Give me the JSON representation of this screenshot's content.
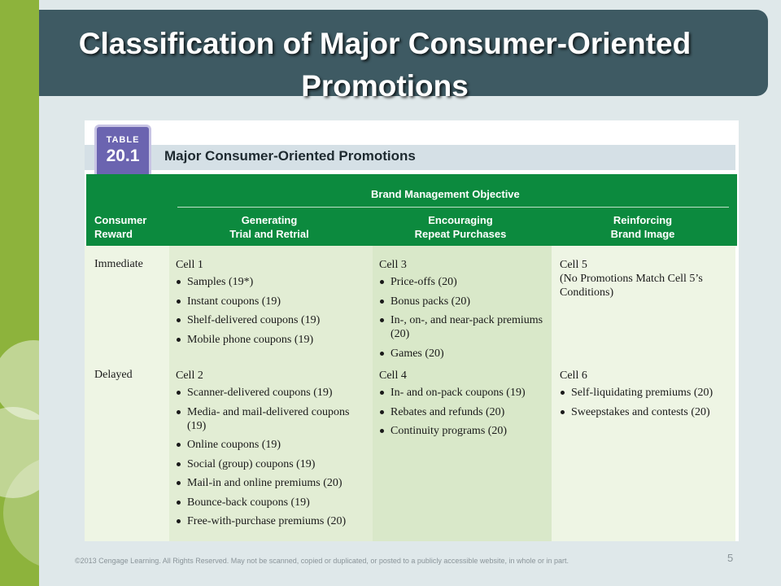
{
  "slide": {
    "title": "Classification of Major Consumer-Oriented Promotions",
    "footer": "©2013 Cengage Learning. All Rights Reserved. May not be scanned, copied or duplicated, or posted to a publicly accessible website, in whole or in part.",
    "page_number": "5"
  },
  "table": {
    "badge_word": "TABLE",
    "badge_number": "20.1",
    "caption": "Major Consumer-Oriented Promotions",
    "group_header": "Brand Management Objective",
    "row_header": "Consumer\nReward",
    "columns": [
      "Generating\nTrial and Retrial",
      "Encouraging\nRepeat Purchases",
      "Reinforcing\nBrand Image"
    ],
    "rows": [
      {
        "label": "Immediate",
        "cells": [
          {
            "title": "Cell 1",
            "items": [
              "Samples (19*)",
              "Instant coupons (19)",
              "Shelf-delivered coupons (19)",
              "Mobile phone coupons (19)"
            ]
          },
          {
            "title": "Cell 3",
            "items": [
              "Price-offs (20)",
              "Bonus packs (20)",
              "In-, on-, and near-pack premiums (20)",
              "Games (20)"
            ]
          },
          {
            "title": "Cell 5",
            "note": "(No Promotions Match Cell 5’s Conditions)",
            "items": []
          }
        ]
      },
      {
        "label": "Delayed",
        "cells": [
          {
            "title": "Cell 2",
            "items": [
              "Scanner-delivered coupons (19)",
              "Media- and mail-delivered coupons (19)",
              "Online coupons (19)",
              "Social (group) coupons (19)",
              "Mail-in and online premiums (20)",
              "Bounce-back coupons (19)",
              "Free-with-purchase premiums (20)"
            ]
          },
          {
            "title": "Cell 4",
            "items": [
              "In- and on-pack coupons (19)",
              "Rebates and refunds (20)",
              "Continuity programs (20)"
            ]
          },
          {
            "title": "Cell 6",
            "items": [
              "Self-liquidating premiums (20)",
              "Sweepstakes and contests (20)"
            ]
          }
        ]
      }
    ]
  },
  "colors": {
    "title_bar": "#3e5a63",
    "left_accent": "#8db33c",
    "header_green": "#0c8a3e",
    "badge": "#6b64b0",
    "column_light": "#eef5e4",
    "column_mid": "#e2edd4"
  }
}
